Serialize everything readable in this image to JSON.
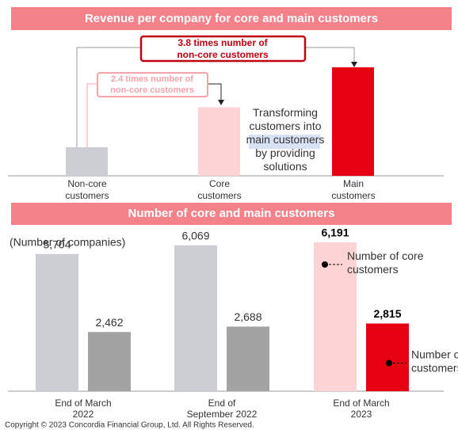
{
  "chart_data": [
    {
      "type": "bar",
      "title": "Revenue per company for core and main customers",
      "categories": [
        "Non-core\ncustomers",
        "Core\ncustomers",
        "Main\ncustomers"
      ],
      "values": [
        1,
        2.4,
        3.8
      ],
      "colors": [
        "#ccced3",
        "#fdd3d6",
        "#e60012"
      ],
      "annotations": [
        "3.8 times number of\nnon-core customers",
        "2.4 times number of\nnon-core customers",
        "Transforming\ncustomers into\nmain customers\nby providing\nsolutions"
      ]
    },
    {
      "type": "grouped_bar",
      "title": "Number of core and main customers",
      "ylabel": "(Number of companies)",
      "categories": [
        "End of March\n2022",
        "End of\nSeptember 2022",
        "End of March\n2023"
      ],
      "series": [
        {
          "name": "Number of core\ncustomers",
          "colors": [
            "#ccced3",
            "#ccced3",
            "#fdd3d6"
          ],
          "values": [
            5704,
            6069,
            6191
          ],
          "value_labels": [
            "5,704",
            "6,069",
            "6,191"
          ]
        },
        {
          "name": "Number of main\ncustomers",
          "colors": [
            "#a3a3a3",
            "#a3a3a3",
            "#e60012"
          ],
          "values": [
            2462,
            2688,
            2815
          ],
          "value_labels": [
            "2,462",
            "2,688",
            "2,815"
          ]
        }
      ]
    }
  ],
  "footer": "Copyright © 2023 Concordia Financial Group, Ltd. All Rights Reserved."
}
